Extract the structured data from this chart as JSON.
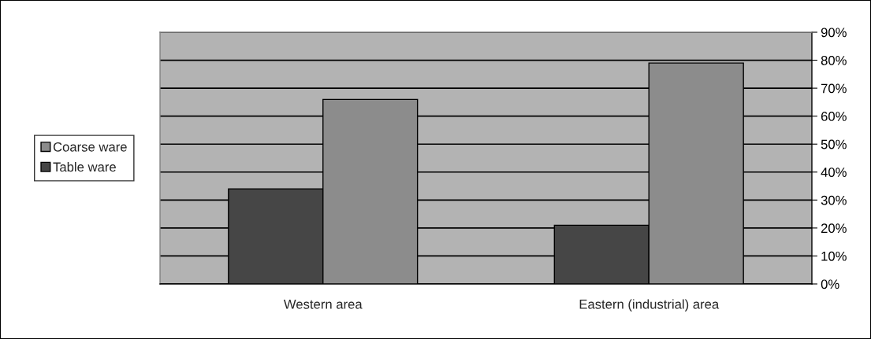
{
  "chart_data": {
    "type": "bar",
    "categories": [
      "Western area",
      "Eastern (industrial) area"
    ],
    "series": [
      {
        "name": "Table ware",
        "color": "#464646",
        "values": [
          34,
          21
        ]
      },
      {
        "name": "Coarse ware",
        "color": "#8c8c8c",
        "values": [
          66,
          79
        ]
      }
    ],
    "ylim": [
      0,
      90
    ],
    "yticks": [
      {
        "value": 0,
        "label": "0%"
      },
      {
        "value": 10,
        "label": "10%"
      },
      {
        "value": 20,
        "label": "20%"
      },
      {
        "value": 30,
        "label": "30%"
      },
      {
        "value": 40,
        "label": "40%"
      },
      {
        "value": 50,
        "label": "50%"
      },
      {
        "value": 60,
        "label": "60%"
      },
      {
        "value": 70,
        "label": "70%"
      },
      {
        "value": 80,
        "label": "80%"
      },
      {
        "value": 90,
        "label": "90%"
      }
    ],
    "grid": "y",
    "legend": "left"
  }
}
